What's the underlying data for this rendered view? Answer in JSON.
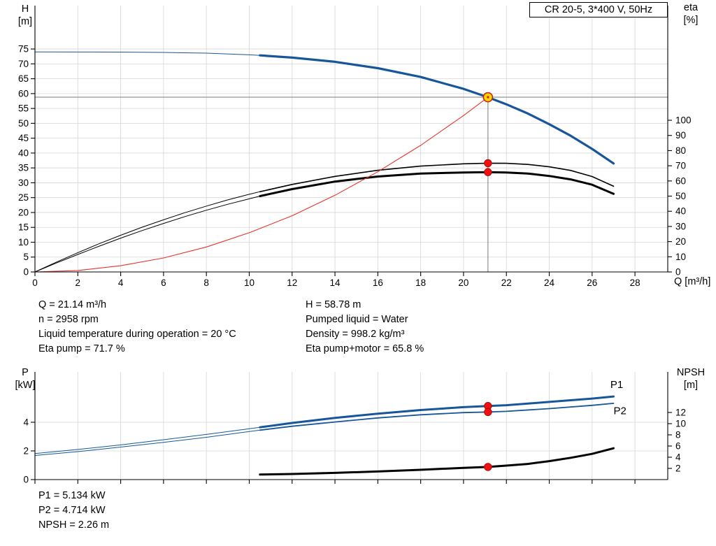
{
  "header": {
    "title_box": "CR 20-5, 3*400 V, 50Hz"
  },
  "top_chart": {
    "left_axis_label": "H",
    "left_axis_unit": "[m]",
    "right_axis_label": "eta",
    "right_axis_unit": "[%]",
    "x_axis_label": "Q [m³/h]"
  },
  "bottom_chart": {
    "left_axis_label": "P",
    "left_axis_unit": "[kW]",
    "right_axis_label": "NPSH",
    "right_axis_unit": "[m]"
  },
  "annotations": {
    "q": "Q = 21.14 m³/h",
    "n": "n = 2958 rpm",
    "liquid_temp": "Liquid temperature during operation = 20 °C",
    "eta_pump": "Eta pump = 71.7 %",
    "h": "H = 58.78 m",
    "pumped_liquid": "Pumped liquid = Water",
    "density": "Density = 998.2 kg/m³",
    "eta_pump_motor": "Eta pump+motor = 65.8 %",
    "p1": "P1 = 5.134 kW",
    "p2": "P2 = 4.714 kW",
    "npsh": "NPSH = 2.26 m"
  },
  "colors": {
    "curve_blue": "#17569b",
    "curve_black": "#000000",
    "curve_red": "#e8332a",
    "marker_red": "#ee1111",
    "marker_red_edge": "#aa0000",
    "marker_yellow": "#ffd800",
    "marker_yellow_edge": "#cc2222",
    "grid": "#d6d6d6",
    "duty_line": "#7a7a7a",
    "axis": "#000000"
  },
  "chart_data": [
    {
      "type": "line",
      "title": "CR 20-5, 3*400 V, 50Hz",
      "x": {
        "label": "Q [m³/h]",
        "min": 0,
        "max": 29.53,
        "ticks": [
          0,
          2,
          4,
          6,
          8,
          10,
          12,
          14,
          16,
          18,
          20,
          22,
          24,
          26,
          28
        ],
        "tick_labels": true
      },
      "y_left": {
        "label": "H [m]",
        "min": 0,
        "max": 89.6,
        "ticks": [
          0,
          5,
          10,
          15,
          20,
          25,
          30,
          35,
          40,
          45,
          50,
          55,
          60,
          65,
          70,
          75
        ]
      },
      "y_right": {
        "label": "eta [%]",
        "min": 0,
        "max": 175.6,
        "ticks": [
          0,
          10,
          20,
          30,
          40,
          50,
          60,
          70,
          80,
          90,
          100
        ]
      },
      "duty_point": {
        "q": 21.14,
        "h": 58.78
      },
      "series": [
        {
          "name": "head-curve-lead",
          "axis": "left",
          "color_key": "curve_blue",
          "width": 1,
          "points": [
            [
              0,
              74.0
            ],
            [
              2,
              73.99
            ],
            [
              4,
              73.95
            ],
            [
              6,
              73.85
            ],
            [
              8,
              73.6
            ],
            [
              10,
              73.05
            ],
            [
              10.5,
              72.85
            ]
          ]
        },
        {
          "name": "head-curve",
          "axis": "left",
          "color_key": "curve_blue",
          "width": 3.2,
          "points": [
            [
              10.5,
              72.85
            ],
            [
              12,
              72.1
            ],
            [
              14,
              70.7
            ],
            [
              16,
              68.55
            ],
            [
              18,
              65.6
            ],
            [
              20,
              61.6
            ],
            [
              21.14,
              58.78
            ],
            [
              22,
              56.4
            ],
            [
              23,
              53.3
            ],
            [
              24,
              49.7
            ],
            [
              25,
              45.8
            ],
            [
              26,
              41.4
            ],
            [
              27,
              36.5
            ]
          ]
        },
        {
          "name": "eta-pump-lead",
          "axis": "right",
          "color_key": "curve_black",
          "width": 1,
          "points": [
            [
              0,
              0
            ],
            [
              1,
              6.5
            ],
            [
              2,
              12.7
            ],
            [
              3,
              18.6
            ],
            [
              4,
              24.2
            ],
            [
              5,
              29.5
            ],
            [
              6,
              34.4
            ],
            [
              7,
              39.1
            ],
            [
              8,
              43.4
            ],
            [
              9,
              47.5
            ],
            [
              10,
              51.2
            ],
            [
              10.5,
              52.9
            ]
          ]
        },
        {
          "name": "eta-pump",
          "axis": "right",
          "color_key": "curve_black",
          "width": 1.6,
          "points": [
            [
              10.5,
              52.9
            ],
            [
              12,
              57.7
            ],
            [
              14,
              63.0
            ],
            [
              16,
              67.0
            ],
            [
              18,
              69.8
            ],
            [
              20,
              71.3
            ],
            [
              21.14,
              71.7
            ],
            [
              22,
              71.6
            ],
            [
              23,
              70.9
            ],
            [
              24,
              69.3
            ],
            [
              25,
              66.9
            ],
            [
              26,
              62.9
            ],
            [
              27,
              56.5
            ]
          ]
        },
        {
          "name": "eta-pump-motor-lead",
          "axis": "right",
          "color_key": "curve_black",
          "width": 1,
          "points": [
            [
              0,
              0
            ],
            [
              1,
              5.9
            ],
            [
              2,
              11.5
            ],
            [
              3,
              17.0
            ],
            [
              4,
              22.3
            ],
            [
              5,
              27.3
            ],
            [
              6,
              32.0
            ],
            [
              7,
              36.5
            ],
            [
              8,
              40.7
            ],
            [
              9,
              44.6
            ],
            [
              10,
              48.2
            ],
            [
              10.5,
              50.0
            ]
          ]
        },
        {
          "name": "eta-pump-motor",
          "axis": "right",
          "color_key": "curve_black",
          "width": 3,
          "points": [
            [
              10.5,
              50.0
            ],
            [
              12,
              54.6
            ],
            [
              14,
              59.6
            ],
            [
              16,
              62.9
            ],
            [
              18,
              64.9
            ],
            [
              20,
              65.6
            ],
            [
              21.14,
              65.8
            ],
            [
              22,
              65.6
            ],
            [
              23,
              64.9
            ],
            [
              24,
              63.3
            ],
            [
              25,
              61.0
            ],
            [
              26,
              57.5
            ],
            [
              27,
              51.5
            ]
          ]
        },
        {
          "name": "system-curve",
          "axis": "left",
          "color_key": "curve_red",
          "width": 1.1,
          "points": [
            [
              0,
              0
            ],
            [
              2,
              0.5
            ],
            [
              4,
              2.1
            ],
            [
              6,
              4.7
            ],
            [
              8,
              8.4
            ],
            [
              10,
              13.2
            ],
            [
              12,
              18.9
            ],
            [
              14,
              25.8
            ],
            [
              16,
              33.7
            ],
            [
              18,
              42.6
            ],
            [
              20,
              52.6
            ],
            [
              21.14,
              58.78
            ]
          ]
        }
      ],
      "markers": [
        {
          "q": 21.14,
          "value": 58.78,
          "axis": "left",
          "type": "duty"
        },
        {
          "q": 21.14,
          "value": 71.7,
          "axis": "right",
          "type": "dot"
        },
        {
          "q": 21.14,
          "value": 65.8,
          "axis": "right",
          "type": "dot"
        }
      ],
      "series_labels": []
    },
    {
      "type": "line",
      "x": {
        "label": "",
        "min": 0,
        "max": 29.53,
        "ticks": [
          0,
          2,
          4,
          6,
          8,
          10,
          12,
          14,
          16,
          18,
          20,
          22,
          24,
          26,
          28
        ],
        "tick_labels": false
      },
      "y_left": {
        "label": "P [kW]",
        "min": 0,
        "max": 7.51,
        "ticks": [
          0,
          2,
          4
        ]
      },
      "y_right": {
        "label": "NPSH [m]",
        "min": 0,
        "max": 19.25,
        "ticks": [
          2,
          4,
          6,
          8,
          10,
          12
        ]
      },
      "series": [
        {
          "name": "p1-curve-lead",
          "axis": "left",
          "color_key": "curve_blue",
          "width": 1,
          "points": [
            [
              0,
              1.82
            ],
            [
              2,
              2.1
            ],
            [
              4,
              2.42
            ],
            [
              6,
              2.78
            ],
            [
              8,
              3.15
            ],
            [
              10,
              3.55
            ],
            [
              10.5,
              3.65
            ]
          ]
        },
        {
          "name": "p1-curve",
          "axis": "left",
          "color_key": "curve_blue",
          "width": 3,
          "points": [
            [
              10.5,
              3.65
            ],
            [
              12,
              3.95
            ],
            [
              14,
              4.3
            ],
            [
              16,
              4.6
            ],
            [
              18,
              4.85
            ],
            [
              20,
              5.05
            ],
            [
              21.14,
              5.134
            ],
            [
              22,
              5.19
            ],
            [
              24,
              5.42
            ],
            [
              26,
              5.65
            ],
            [
              27,
              5.8
            ]
          ]
        },
        {
          "name": "p2-curve-lead",
          "axis": "left",
          "color_key": "curve_blue",
          "width": 1,
          "points": [
            [
              0,
              1.68
            ],
            [
              2,
              1.95
            ],
            [
              4,
              2.27
            ],
            [
              6,
              2.6
            ],
            [
              8,
              2.95
            ],
            [
              10,
              3.35
            ],
            [
              10.5,
              3.45
            ]
          ]
        },
        {
          "name": "p2-curve",
          "axis": "left",
          "color_key": "curve_blue",
          "width": 1.8,
          "points": [
            [
              10.5,
              3.45
            ],
            [
              12,
              3.72
            ],
            [
              14,
              4.02
            ],
            [
              16,
              4.3
            ],
            [
              18,
              4.52
            ],
            [
              20,
              4.67
            ],
            [
              21.14,
              4.714
            ],
            [
              22,
              4.76
            ],
            [
              24,
              4.95
            ],
            [
              26,
              5.18
            ],
            [
              27,
              5.32
            ]
          ]
        },
        {
          "name": "npsh-curve",
          "axis": "right",
          "color_key": "curve_black",
          "width": 3,
          "points": [
            [
              10.5,
              0.9
            ],
            [
              12,
              1.0
            ],
            [
              14,
              1.2
            ],
            [
              16,
              1.45
            ],
            [
              18,
              1.75
            ],
            [
              20,
              2.1
            ],
            [
              21.14,
              2.26
            ],
            [
              22,
              2.5
            ],
            [
              23,
              2.8
            ],
            [
              24,
              3.3
            ],
            [
              25,
              3.9
            ],
            [
              26,
              4.6
            ],
            [
              27,
              5.6
            ]
          ]
        }
      ],
      "markers": [
        {
          "q": 21.14,
          "value": 5.134,
          "axis": "left",
          "type": "dot"
        },
        {
          "q": 21.14,
          "value": 4.714,
          "axis": "left",
          "type": "dot"
        },
        {
          "q": 21.14,
          "value": 2.26,
          "axis": "right",
          "type": "dot"
        }
      ],
      "series_labels": [
        {
          "text": "P1",
          "q": 27.15,
          "value": 6.4,
          "axis": "left"
        },
        {
          "text": "P2",
          "q": 27.3,
          "value": 4.55,
          "axis": "left"
        }
      ]
    }
  ]
}
